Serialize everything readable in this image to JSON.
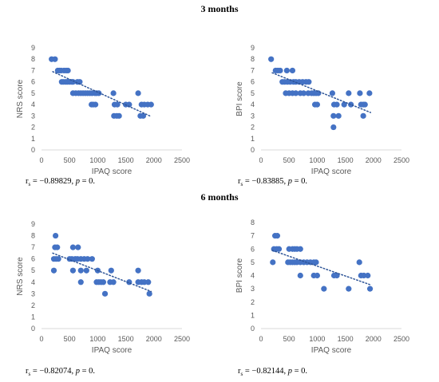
{
  "sections": [
    {
      "title": "3 months"
    },
    {
      "title": "6 months"
    }
  ],
  "colors": {
    "points": "#4472C4",
    "trend": "#2F5597",
    "axis": "#D9D9D9",
    "text": "#595959"
  },
  "chart_data": [
    {
      "type": "scatter",
      "panel": "3 months – NRS",
      "xlabel": "IPAQ score",
      "ylabel": "NRS score",
      "xlim": [
        0,
        2500
      ],
      "ylim": [
        0,
        9
      ],
      "xticks": [
        0,
        500,
        1000,
        1500,
        2000,
        2500
      ],
      "yticks": [
        0,
        1,
        2,
        3,
        4,
        5,
        6,
        7,
        8,
        9
      ],
      "grid": false,
      "trendline": {
        "style": "dotted",
        "from": [
          200,
          6.9
        ],
        "to": [
          1950,
          2.95
        ]
      },
      "annotation": {
        "r_label": "r",
        "r_sub": "s",
        "r_value": " = −0.89829, ",
        "p_label": "p",
        "p_value": " = 0."
      },
      "points": [
        [
          180,
          8
        ],
        [
          240,
          8
        ],
        [
          290,
          7
        ],
        [
          320,
          7
        ],
        [
          350,
          7
        ],
        [
          400,
          7
        ],
        [
          440,
          7
        ],
        [
          470,
          7
        ],
        [
          360,
          6
        ],
        [
          390,
          6
        ],
        [
          430,
          6
        ],
        [
          460,
          6
        ],
        [
          500,
          6
        ],
        [
          540,
          6
        ],
        [
          560,
          6
        ],
        [
          640,
          6
        ],
        [
          680,
          6
        ],
        [
          560,
          5
        ],
        [
          610,
          5
        ],
        [
          660,
          5
        ],
        [
          700,
          5
        ],
        [
          740,
          5
        ],
        [
          780,
          5
        ],
        [
          820,
          5
        ],
        [
          860,
          5
        ],
        [
          900,
          5
        ],
        [
          950,
          5
        ],
        [
          980,
          5
        ],
        [
          1020,
          5
        ],
        [
          1280,
          5
        ],
        [
          1720,
          5
        ],
        [
          890,
          4
        ],
        [
          920,
          4
        ],
        [
          960,
          4
        ],
        [
          1300,
          4
        ],
        [
          1350,
          4
        ],
        [
          1500,
          4
        ],
        [
          1560,
          4
        ],
        [
          1780,
          4
        ],
        [
          1830,
          4
        ],
        [
          1890,
          4
        ],
        [
          1950,
          4
        ],
        [
          1290,
          3
        ],
        [
          1340,
          3
        ],
        [
          1380,
          3
        ],
        [
          1760,
          3
        ],
        [
          1810,
          3
        ]
      ]
    },
    {
      "type": "scatter",
      "panel": "3 months – BPI",
      "xlabel": "IPAQ score",
      "ylabel": "BPI score",
      "xlim": [
        0,
        2500
      ],
      "ylim": [
        0,
        9
      ],
      "xticks": [
        0,
        500,
        1000,
        1500,
        2000,
        2500
      ],
      "yticks": [
        0,
        1,
        2,
        3,
        4,
        5,
        6,
        7,
        8,
        9
      ],
      "grid": false,
      "trendline": {
        "style": "dotted",
        "from": [
          200,
          6.8
        ],
        "to": [
          1950,
          3.3
        ]
      },
      "annotation": {
        "r_label": "r",
        "r_sub": "s",
        "r_value": " = −0.83885, ",
        "p_label": "p",
        "p_value": " = 0."
      },
      "points": [
        [
          180,
          8
        ],
        [
          260,
          7
        ],
        [
          300,
          7
        ],
        [
          340,
          7
        ],
        [
          460,
          7
        ],
        [
          560,
          7
        ],
        [
          380,
          6
        ],
        [
          420,
          6
        ],
        [
          470,
          6
        ],
        [
          520,
          6
        ],
        [
          580,
          6
        ],
        [
          620,
          6
        ],
        [
          680,
          6
        ],
        [
          740,
          6
        ],
        [
          800,
          6
        ],
        [
          850,
          6
        ],
        [
          440,
          5
        ],
        [
          500,
          5
        ],
        [
          560,
          5
        ],
        [
          620,
          5
        ],
        [
          700,
          5
        ],
        [
          760,
          5
        ],
        [
          840,
          5
        ],
        [
          900,
          5
        ],
        [
          940,
          5
        ],
        [
          980,
          5
        ],
        [
          1020,
          5
        ],
        [
          1270,
          5
        ],
        [
          1560,
          5
        ],
        [
          1760,
          5
        ],
        [
          1930,
          5
        ],
        [
          960,
          4
        ],
        [
          1000,
          4
        ],
        [
          1300,
          4
        ],
        [
          1350,
          4
        ],
        [
          1480,
          4
        ],
        [
          1600,
          4
        ],
        [
          1780,
          4
        ],
        [
          1820,
          4
        ],
        [
          1850,
          4
        ],
        [
          1380,
          3
        ],
        [
          1290,
          3
        ],
        [
          1820,
          3
        ],
        [
          1290,
          2
        ]
      ]
    },
    {
      "type": "scatter",
      "panel": "6 months – NRS",
      "xlabel": "IPAQ score",
      "ylabel": "NRS score",
      "xlim": [
        0,
        2500
      ],
      "ylim": [
        0,
        9
      ],
      "xticks": [
        0,
        500,
        1000,
        1500,
        2000,
        2500
      ],
      "yticks": [
        0,
        1,
        2,
        3,
        4,
        5,
        6,
        7,
        8,
        9
      ],
      "grid": false,
      "trendline": {
        "style": "dotted",
        "from": [
          200,
          6.5
        ],
        "to": [
          1950,
          3.2
        ]
      },
      "annotation": {
        "r_label": "r",
        "r_sub": "s",
        "r_value": " = −0.82074, ",
        "p_label": "p",
        "p_value": " = 0."
      },
      "points": [
        [
          250,
          8
        ],
        [
          240,
          7
        ],
        [
          280,
          7
        ],
        [
          560,
          7
        ],
        [
          650,
          7
        ],
        [
          220,
          6
        ],
        [
          260,
          6
        ],
        [
          300,
          6
        ],
        [
          500,
          6
        ],
        [
          540,
          6
        ],
        [
          600,
          6
        ],
        [
          640,
          6
        ],
        [
          700,
          6
        ],
        [
          760,
          6
        ],
        [
          820,
          6
        ],
        [
          900,
          6
        ],
        [
          220,
          5
        ],
        [
          560,
          5
        ],
        [
          700,
          5
        ],
        [
          800,
          5
        ],
        [
          1000,
          5
        ],
        [
          1240,
          5
        ],
        [
          1720,
          5
        ],
        [
          700,
          4
        ],
        [
          980,
          4
        ],
        [
          1020,
          4
        ],
        [
          1060,
          4
        ],
        [
          1100,
          4
        ],
        [
          1220,
          4
        ],
        [
          1280,
          4
        ],
        [
          1560,
          4
        ],
        [
          1720,
          4
        ],
        [
          1780,
          4
        ],
        [
          1830,
          4
        ],
        [
          1900,
          4
        ],
        [
          1130,
          3
        ],
        [
          1920,
          3
        ]
      ]
    },
    {
      "type": "scatter",
      "panel": "6 months – BPI",
      "xlabel": "IPAQ score",
      "ylabel": "BPI score",
      "xlim": [
        0,
        2500
      ],
      "ylim": [
        0,
        8
      ],
      "xticks": [
        0,
        500,
        1000,
        1500,
        2000,
        2500
      ],
      "yticks": [
        0,
        1,
        2,
        3,
        4,
        5,
        6,
        7,
        8
      ],
      "grid": false,
      "trendline": {
        "style": "dotted",
        "from": [
          200,
          5.9
        ],
        "to": [
          1950,
          3.3
        ]
      },
      "annotation": {
        "r_label": "r",
        "r_sub": "s",
        "r_value": " = −0.82144, ",
        "p_label": "p",
        "p_value": " = 0."
      },
      "points": [
        [
          250,
          7
        ],
        [
          290,
          7
        ],
        [
          230,
          6
        ],
        [
          280,
          6
        ],
        [
          320,
          6
        ],
        [
          500,
          6
        ],
        [
          560,
          6
        ],
        [
          600,
          6
        ],
        [
          640,
          6
        ],
        [
          700,
          6
        ],
        [
          210,
          5
        ],
        [
          480,
          5
        ],
        [
          520,
          5
        ],
        [
          560,
          5
        ],
        [
          600,
          5
        ],
        [
          640,
          5
        ],
        [
          700,
          5
        ],
        [
          760,
          5
        ],
        [
          820,
          5
        ],
        [
          880,
          5
        ],
        [
          940,
          5
        ],
        [
          980,
          5
        ],
        [
          1750,
          5
        ],
        [
          700,
          4
        ],
        [
          940,
          4
        ],
        [
          1000,
          4
        ],
        [
          1300,
          4
        ],
        [
          1350,
          4
        ],
        [
          1780,
          4
        ],
        [
          1830,
          4
        ],
        [
          1900,
          4
        ],
        [
          1120,
          3
        ],
        [
          1560,
          3
        ],
        [
          1940,
          3
        ]
      ]
    }
  ]
}
